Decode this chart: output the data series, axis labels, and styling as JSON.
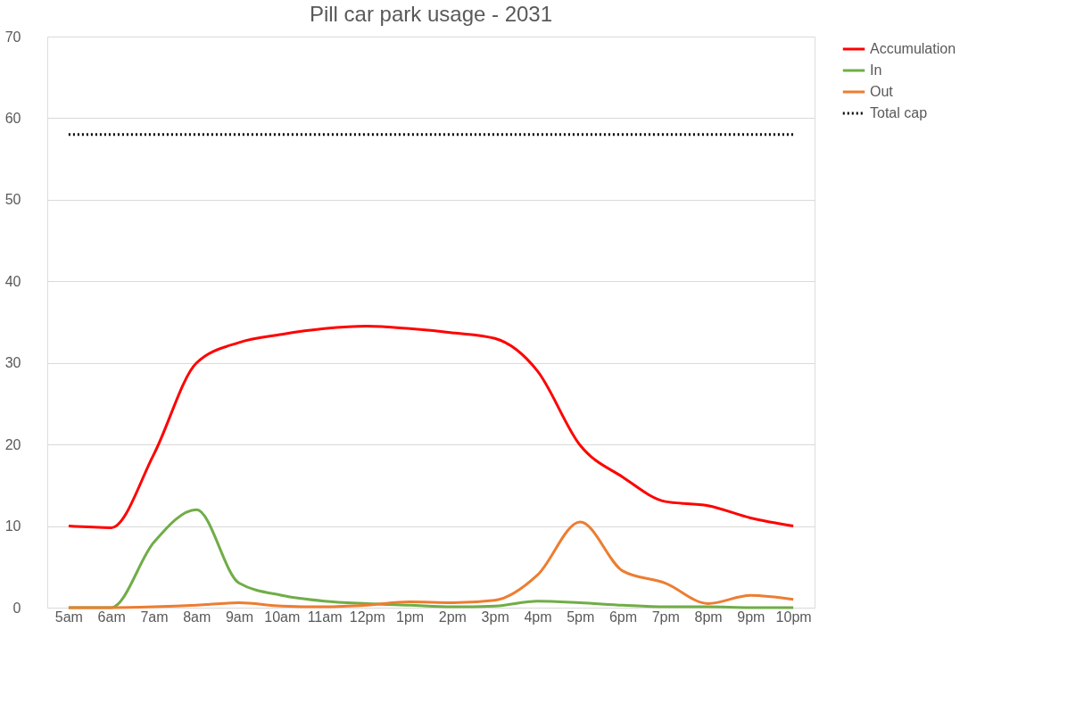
{
  "chart_data": {
    "type": "line",
    "title": "Pill car park usage - 2031",
    "categories": [
      "5am",
      "6am",
      "7am",
      "8am",
      "9am",
      "10am",
      "11am",
      "12pm",
      "1pm",
      "2pm",
      "3pm",
      "4pm",
      "5pm",
      "6pm",
      "7pm",
      "8pm",
      "9pm",
      "10pm"
    ],
    "series": [
      {
        "name": "Accumulation",
        "color": "#ff0000",
        "line_style": "solid",
        "values": [
          10,
          9.8,
          18.8,
          30,
          32.5,
          33.5,
          34.2,
          34.5,
          34.2,
          33.7,
          33,
          29,
          19.9,
          16,
          13,
          12.5,
          11,
          10
        ]
      },
      {
        "name": "In",
        "color": "#70ad47",
        "line_style": "solid",
        "values": [
          0,
          0,
          8,
          12,
          3,
          1.5,
          0.8,
          0.5,
          0.3,
          0.1,
          0.2,
          0.8,
          0.6,
          0.3,
          0.1,
          0.1,
          0,
          0
        ]
      },
      {
        "name": "Out",
        "color": "#ed7d31",
        "line_style": "solid",
        "values": [
          0,
          0,
          0.1,
          0.3,
          0.6,
          0.2,
          0.1,
          0.3,
          0.7,
          0.6,
          0.9,
          4,
          10.5,
          4.5,
          3,
          0.5,
          1.5,
          1
        ]
      },
      {
        "name": "Total cap",
        "color": "#000000",
        "line_style": "dotted",
        "values": [
          58,
          58,
          58,
          58,
          58,
          58,
          58,
          58,
          58,
          58,
          58,
          58,
          58,
          58,
          58,
          58,
          58,
          58
        ]
      }
    ],
    "ylim": [
      0,
      70
    ],
    "yticks": [
      0,
      10,
      20,
      30,
      40,
      50,
      60,
      70
    ],
    "grid": "y",
    "legend": "right",
    "marker": "none"
  }
}
